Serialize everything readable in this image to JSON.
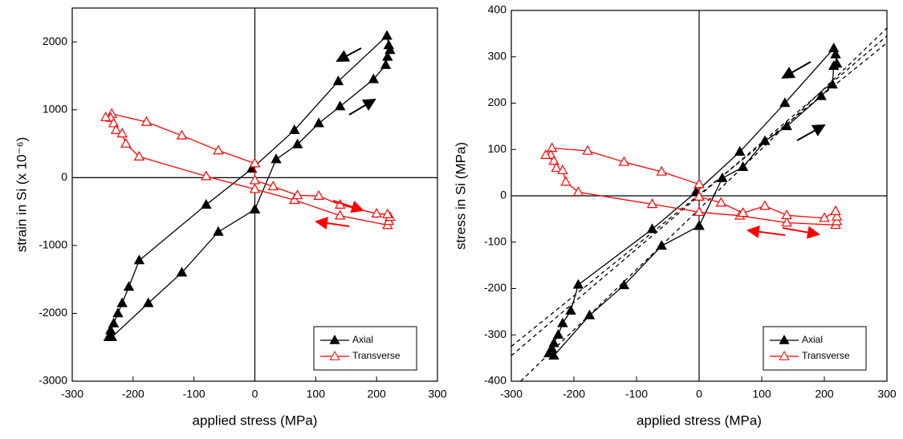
{
  "chart_data": [
    {
      "type": "scatter",
      "xlabel": "applied stress (MPa)",
      "ylabel": "strain in Si (x 10⁻⁶)",
      "xlim": [
        -300,
        300
      ],
      "ylim": [
        -3000,
        2500
      ],
      "xticks": [
        -300,
        -200,
        -100,
        0,
        100,
        200,
        300
      ],
      "yticks": [
        -3000,
        -2000,
        -1000,
        0,
        1000,
        2000
      ],
      "legend": "lower right",
      "series": [
        {
          "name": "Axial",
          "color": "#000000",
          "filled": true,
          "x": [
            0,
            35,
            70,
            105,
            140,
            195,
            215,
            218,
            222,
            220,
            217,
            137,
            65,
            -5,
            -80,
            -190,
            -207,
            -218,
            -225,
            -232,
            -237,
            -240,
            -235,
            -175,
            -120,
            -60,
            0
          ],
          "values": [
            -470,
            270,
            490,
            800,
            1050,
            1450,
            1660,
            1780,
            1880,
            1950,
            2090,
            1420,
            700,
            130,
            -400,
            -1220,
            -1610,
            -1850,
            -2000,
            -2150,
            -2250,
            -2350,
            -2350,
            -1850,
            -1400,
            -800,
            -470
          ]
        },
        {
          "name": "Transverse",
          "color": "#ff0000",
          "filled": false,
          "x": [
            0,
            -60,
            -120,
            -178,
            -235,
            -237,
            -245,
            -232,
            -228,
            -218,
            -212,
            -190,
            -80,
            0,
            65,
            140,
            218,
            220,
            222,
            218,
            200,
            140,
            105,
            70,
            30,
            0,
            0
          ],
          "values": [
            210,
            400,
            620,
            820,
            940,
            880,
            890,
            800,
            700,
            650,
            500,
            310,
            20,
            -170,
            -330,
            -560,
            -700,
            -640,
            -580,
            -540,
            -530,
            -400,
            -270,
            -260,
            -130,
            -40,
            210
          ]
        }
      ]
    },
    {
      "type": "scatter",
      "xlabel": "applied stress (MPa)",
      "ylabel": "stress in Si (MPa)",
      "xlim": [
        -300,
        300
      ],
      "ylim": [
        -400,
        400
      ],
      "xticks": [
        -300,
        -200,
        -100,
        0,
        100,
        200,
        300
      ],
      "yticks": [
        -400,
        -300,
        -200,
        -100,
        0,
        100,
        200,
        300,
        400
      ],
      "legend": "lower right",
      "series": [
        {
          "name": "Axial",
          "color": "#000000",
          "filled": true,
          "x": [
            0,
            37,
            70,
            105,
            140,
            195,
            213,
            215,
            220,
            218,
            215,
            137,
            65,
            -5,
            -75,
            -193,
            -205,
            -218,
            -225,
            -232,
            -235,
            -240,
            -232,
            -175,
            -120,
            -60,
            0
          ],
          "values": [
            -65,
            38,
            62,
            118,
            150,
            215,
            240,
            280,
            285,
            305,
            318,
            200,
            95,
            8,
            -72,
            -192,
            -248,
            -275,
            -300,
            -318,
            -330,
            -340,
            -345,
            -258,
            -193,
            -108,
            -65
          ]
        },
        {
          "name": "Transverse",
          "color": "#ff0000",
          "filled": false,
          "x": [
            0,
            -60,
            -120,
            -178,
            -235,
            -237,
            -245,
            -232,
            -228,
            -218,
            -213,
            -193,
            -75,
            0,
            65,
            140,
            218,
            220,
            220,
            218,
            200,
            140,
            105,
            70,
            35,
            0,
            0
          ],
          "values": [
            25,
            52,
            73,
            97,
            103,
            88,
            88,
            75,
            60,
            55,
            30,
            8,
            -18,
            -35,
            -43,
            -58,
            -63,
            -55,
            -45,
            -33,
            -48,
            -42,
            -22,
            -37,
            -15,
            -2,
            25
          ]
        }
      ],
      "reference_lines": [
        {
          "color": "#000000",
          "dashed": true,
          "x": [
            -285,
            300
          ],
          "values": [
            -400,
            362
          ]
        },
        {
          "color": "#000000",
          "dashed": true,
          "x": [
            -300,
            300
          ],
          "values": [
            -345,
            345
          ]
        },
        {
          "color": "#000000",
          "dashed": true,
          "x": [
            -300,
            300
          ],
          "values": [
            -325,
            330
          ]
        }
      ]
    }
  ]
}
